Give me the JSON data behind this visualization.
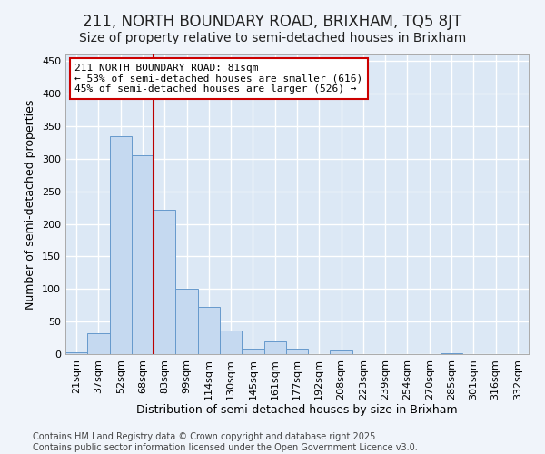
{
  "title": "211, NORTH BOUNDARY ROAD, BRIXHAM, TQ5 8JT",
  "subtitle": "Size of property relative to semi-detached houses in Brixham",
  "xlabel": "Distribution of semi-detached houses by size in Brixham",
  "ylabel": "Number of semi-detached properties",
  "bar_labels": [
    "21sqm",
    "37sqm",
    "52sqm",
    "68sqm",
    "83sqm",
    "99sqm",
    "114sqm",
    "130sqm",
    "145sqm",
    "161sqm",
    "177sqm",
    "192sqm",
    "208sqm",
    "223sqm",
    "239sqm",
    "254sqm",
    "270sqm",
    "285sqm",
    "301sqm",
    "316sqm",
    "332sqm"
  ],
  "bar_values": [
    3,
    32,
    335,
    305,
    221,
    101,
    73,
    36,
    9,
    20,
    9,
    0,
    6,
    0,
    0,
    0,
    0,
    1,
    0,
    0,
    0
  ],
  "bar_color": "#c5d9f0",
  "bar_edge_color": "#6699cc",
  "vline_index": 4,
  "vline_color": "#bb0000",
  "annotation_text": "211 NORTH BOUNDARY ROAD: 81sqm\n← 53% of semi-detached houses are smaller (616)\n45% of semi-detached houses are larger (526) →",
  "annotation_box_facecolor": "#ffffff",
  "annotation_box_edgecolor": "#cc0000",
  "ylim": [
    0,
    460
  ],
  "yticks": [
    0,
    50,
    100,
    150,
    200,
    250,
    300,
    350,
    400,
    450
  ],
  "footer_text": "Contains HM Land Registry data © Crown copyright and database right 2025.\nContains public sector information licensed under the Open Government Licence v3.0.",
  "bg_color": "#f0f4fa",
  "plot_bg_color": "#dce8f5",
  "title_fontsize": 12,
  "subtitle_fontsize": 10,
  "axis_label_fontsize": 9,
  "tick_fontsize": 8,
  "annotation_fontsize": 8,
  "footer_fontsize": 7,
  "grid_color": "#ffffff",
  "grid_linewidth": 1.0
}
